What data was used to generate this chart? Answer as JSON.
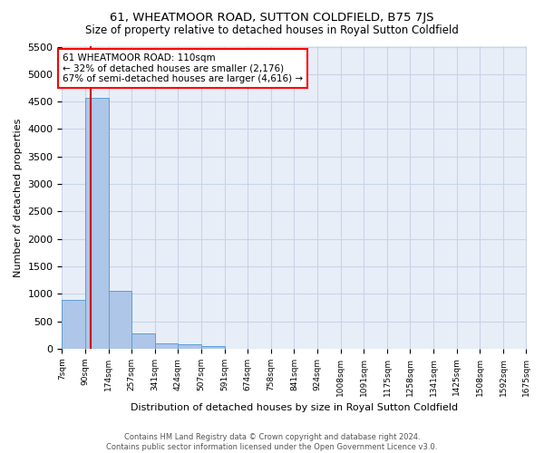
{
  "title": "61, WHEATMOOR ROAD, SUTTON COLDFIELD, B75 7JS",
  "subtitle": "Size of property relative to detached houses in Royal Sutton Coldfield",
  "xlabel": "Distribution of detached houses by size in Royal Sutton Coldfield",
  "ylabel": "Number of detached properties",
  "footer_line1": "Contains HM Land Registry data © Crown copyright and database right 2024.",
  "footer_line2": "Contains public sector information licensed under the Open Government Licence v3.0.",
  "annotation_title": "61 WHEATMOOR ROAD: 110sqm",
  "annotation_line2": "← 32% of detached houses are smaller (2,176)",
  "annotation_line3": "67% of semi-detached houses are larger (4,616) →",
  "property_size": 110,
  "bin_edges": [
    7,
    90,
    174,
    257,
    341,
    424,
    507,
    591,
    674,
    758,
    841,
    924,
    1008,
    1091,
    1175,
    1258,
    1341,
    1425,
    1508,
    1592,
    1675
  ],
  "bin_labels": [
    "7sqm",
    "90sqm",
    "174sqm",
    "257sqm",
    "341sqm",
    "424sqm",
    "507sqm",
    "591sqm",
    "674sqm",
    "758sqm",
    "841sqm",
    "924sqm",
    "1008sqm",
    "1091sqm",
    "1175sqm",
    "1258sqm",
    "1341sqm",
    "1425sqm",
    "1508sqm",
    "1592sqm",
    "1675sqm"
  ],
  "bar_values": [
    880,
    4560,
    1060,
    270,
    90,
    75,
    50,
    0,
    0,
    0,
    0,
    0,
    0,
    0,
    0,
    0,
    0,
    0,
    0,
    0
  ],
  "bar_color": "#aec6e8",
  "bar_edge_color": "#5a9fd4",
  "grid_color": "#c8d4e8",
  "background_color": "#e8eef8",
  "vline_color": "#cc0000",
  "ylim": [
    0,
    5500
  ],
  "yticks": [
    0,
    500,
    1000,
    1500,
    2000,
    2500,
    3000,
    3500,
    4000,
    4500,
    5000,
    5500
  ]
}
